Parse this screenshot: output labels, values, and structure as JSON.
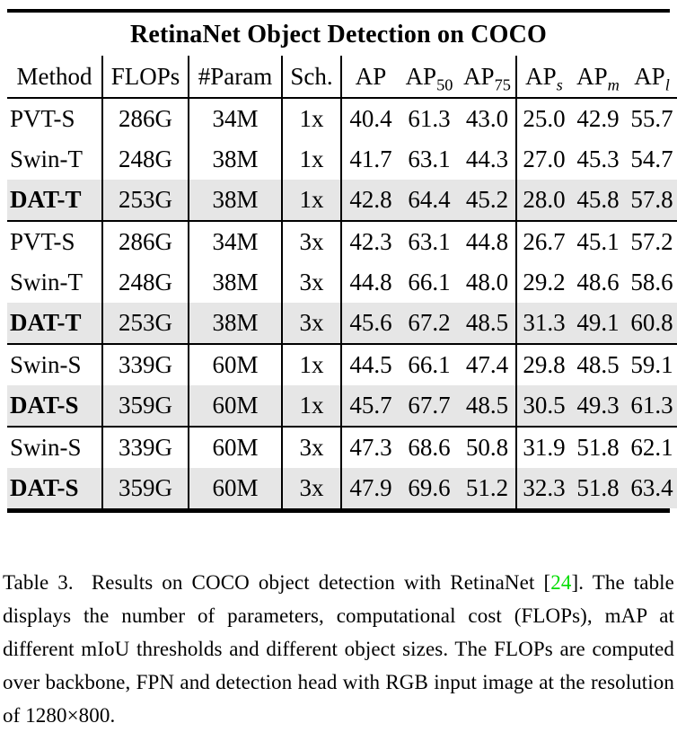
{
  "table": {
    "title": "RetinaNet Object Detection on COCO",
    "headers": {
      "method": "Method",
      "flops": "FLOPs",
      "param": "#Param",
      "sched": "Sch.",
      "ap_base": "AP",
      "sub_50": "50",
      "sub_75": "75",
      "sub_s": "s",
      "sub_m": "m",
      "sub_l": "l"
    },
    "rows": [
      {
        "method": "PVT-S",
        "flops": "286G",
        "param": "34M",
        "sched": "1x",
        "ap": "40.4",
        "ap50": "61.3",
        "ap75": "43.0",
        "aps": "25.0",
        "apm": "42.9",
        "apl": "55.7",
        "highlight": false
      },
      {
        "method": "Swin-T",
        "flops": "248G",
        "param": "38M",
        "sched": "1x",
        "ap": "41.7",
        "ap50": "63.1",
        "ap75": "44.3",
        "aps": "27.0",
        "apm": "45.3",
        "apl": "54.7",
        "highlight": false
      },
      {
        "method": "DAT-T",
        "flops": "253G",
        "param": "38M",
        "sched": "1x",
        "ap": "42.8",
        "ap50": "64.4",
        "ap75": "45.2",
        "aps": "28.0",
        "apm": "45.8",
        "apl": "57.8",
        "highlight": true
      },
      {
        "method": "PVT-S",
        "flops": "286G",
        "param": "34M",
        "sched": "3x",
        "ap": "42.3",
        "ap50": "63.1",
        "ap75": "44.8",
        "aps": "26.7",
        "apm": "45.1",
        "apl": "57.2",
        "highlight": false
      },
      {
        "method": "Swin-T",
        "flops": "248G",
        "param": "38M",
        "sched": "3x",
        "ap": "44.8",
        "ap50": "66.1",
        "ap75": "48.0",
        "aps": "29.2",
        "apm": "48.6",
        "apl": "58.6",
        "highlight": false
      },
      {
        "method": "DAT-T",
        "flops": "253G",
        "param": "38M",
        "sched": "3x",
        "ap": "45.6",
        "ap50": "67.2",
        "ap75": "48.5",
        "aps": "31.3",
        "apm": "49.1",
        "apl": "60.8",
        "highlight": true
      },
      {
        "method": "Swin-S",
        "flops": "339G",
        "param": "60M",
        "sched": "1x",
        "ap": "44.5",
        "ap50": "66.1",
        "ap75": "47.4",
        "aps": "29.8",
        "apm": "48.5",
        "apl": "59.1",
        "highlight": false
      },
      {
        "method": "DAT-S",
        "flops": "359G",
        "param": "60M",
        "sched": "1x",
        "ap": "45.7",
        "ap50": "67.7",
        "ap75": "48.5",
        "aps": "30.5",
        "apm": "49.3",
        "apl": "61.3",
        "highlight": true
      },
      {
        "method": "Swin-S",
        "flops": "339G",
        "param": "60M",
        "sched": "3x",
        "ap": "47.3",
        "ap50": "68.6",
        "ap75": "50.8",
        "aps": "31.9",
        "apm": "51.8",
        "apl": "62.1",
        "highlight": false
      },
      {
        "method": "DAT-S",
        "flops": "359G",
        "param": "60M",
        "sched": "3x",
        "ap": "47.9",
        "ap50": "69.6",
        "ap75": "51.2",
        "aps": "32.3",
        "apm": "51.8",
        "apl": "63.4",
        "highlight": true
      }
    ],
    "highlight_color": "#e6e6e6"
  },
  "caption": {
    "label": "Table 3.",
    "pre_cite": "  Results on COCO object detection with RetinaNet ",
    "cite_open": "[",
    "cite_number": "24",
    "cite_close": "].",
    "post_cite": " The table displays the number of parameters, computational cost (FLOPs), mAP at different mIoU thresholds and different object sizes. The FLOPs are computed over backbone, FPN and detection head with RGB input image at the resolution of 1280×800.",
    "citation_color": "#00dd00"
  }
}
